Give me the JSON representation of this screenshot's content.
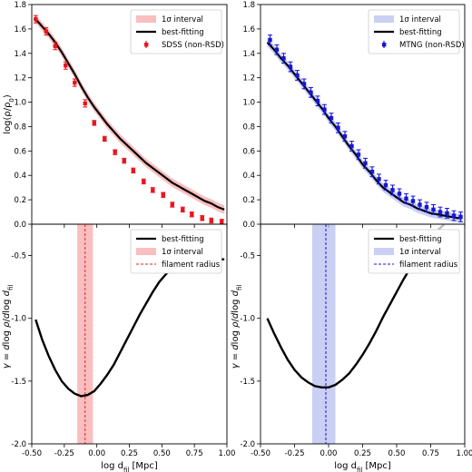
{
  "chart_data": [
    {
      "id": "top-left",
      "type": "line",
      "ylabel": "log(ρ/ρ₀)",
      "xlim": [
        -0.5,
        1.0
      ],
      "ylim": [
        0.0,
        1.8
      ],
      "xticks": [
        -0.5,
        -0.25,
        0.0,
        0.25,
        0.5,
        0.75,
        1.0
      ],
      "yticks": [
        0.0,
        0.2,
        0.4,
        0.6,
        0.8,
        1.0,
        1.2,
        1.4,
        1.6,
        1.8
      ],
      "ytick_labels": [
        "0.0",
        "0.2",
        "0.4",
        "0.6",
        "0.8",
        "1.0",
        "1.2",
        "1.4",
        "1.6",
        "1.8"
      ],
      "legend_position": "top-right",
      "colors": {
        "band": "#f8a8a8",
        "points": "#e8141e",
        "fit": "#000000"
      },
      "legend": [
        "1σ interval",
        "best-fitting",
        "SDSS (non-RSD)"
      ],
      "series": [
        {
          "name": "best-fitting",
          "x": [
            -0.47,
            -0.42,
            -0.37,
            -0.32,
            -0.27,
            -0.22,
            -0.17,
            -0.12,
            -0.07,
            -0.02,
            0.03,
            0.08,
            0.13,
            0.18,
            0.23,
            0.28,
            0.33,
            0.38,
            0.43,
            0.48,
            0.53,
            0.58,
            0.63,
            0.68,
            0.73,
            0.78,
            0.83,
            0.88,
            0.93,
            0.98
          ],
          "y": [
            1.68,
            1.62,
            1.56,
            1.49,
            1.41,
            1.32,
            1.23,
            1.13,
            1.04,
            0.96,
            0.89,
            0.82,
            0.76,
            0.7,
            0.65,
            0.6,
            0.55,
            0.5,
            0.46,
            0.42,
            0.38,
            0.34,
            0.31,
            0.28,
            0.25,
            0.22,
            0.19,
            0.17,
            0.14,
            0.12
          ]
        },
        {
          "name": "SDSS (non-RSD)",
          "x": [
            -0.47,
            -0.39,
            -0.32,
            -0.24,
            -0.17,
            -0.09,
            -0.02,
            0.06,
            0.14,
            0.21,
            0.28,
            0.36,
            0.43,
            0.51,
            0.58,
            0.66,
            0.73,
            0.81,
            0.88,
            0.96
          ],
          "y": [
            1.68,
            1.58,
            1.46,
            1.3,
            1.16,
            0.99,
            0.83,
            0.7,
            0.59,
            0.52,
            0.44,
            0.35,
            0.28,
            0.24,
            0.16,
            0.12,
            0.08,
            0.05,
            0.03,
            0.02
          ],
          "yerr": [
            0.03,
            0.03,
            0.03,
            0.03,
            0.03,
            0.03,
            0.02,
            0.02,
            0.02,
            0.02,
            0.02,
            0.02,
            0.02,
            0.02,
            0.02,
            0.02,
            0.02,
            0.02,
            0.02,
            0.02
          ]
        }
      ]
    },
    {
      "id": "top-right",
      "type": "line",
      "xlim": [
        -0.5,
        1.0
      ],
      "ylim": [
        0.0,
        1.8
      ],
      "xticks": [
        -0.5,
        -0.25,
        0.0,
        0.25,
        0.5,
        0.75,
        1.0
      ],
      "yticks": [
        0.0,
        0.2,
        0.4,
        0.6,
        0.8,
        1.0,
        1.2,
        1.4,
        1.6,
        1.8
      ],
      "ytick_labels": [
        "0.0",
        "0.2",
        "0.4",
        "0.6",
        "0.8",
        "1.0",
        "1.2",
        "1.4",
        "1.6",
        "1.8"
      ],
      "legend_position": "top-right",
      "colors": {
        "band": "#b8bff0",
        "points": "#1616d8",
        "fit": "#000000"
      },
      "legend": [
        "1σ interval",
        "best-fitting",
        "MTNG (non-RSD)"
      ],
      "series": [
        {
          "name": "best-fitting",
          "x": [
            -0.45,
            -0.4,
            -0.35,
            -0.3,
            -0.25,
            -0.2,
            -0.15,
            -0.1,
            -0.05,
            0.0,
            0.05,
            0.1,
            0.15,
            0.2,
            0.25,
            0.3,
            0.35,
            0.4,
            0.45,
            0.5,
            0.55,
            0.6,
            0.65,
            0.7,
            0.75,
            0.8,
            0.85,
            0.9,
            0.95,
            0.98
          ],
          "y": [
            1.49,
            1.43,
            1.36,
            1.3,
            1.23,
            1.16,
            1.09,
            1.02,
            0.95,
            0.87,
            0.8,
            0.72,
            0.64,
            0.57,
            0.49,
            0.43,
            0.36,
            0.3,
            0.26,
            0.22,
            0.18,
            0.16,
            0.13,
            0.11,
            0.09,
            0.08,
            0.07,
            0.06,
            0.05,
            0.05
          ]
        },
        {
          "name": "MTNG (non-RSD)",
          "x": [
            -0.43,
            -0.38,
            -0.33,
            -0.28,
            -0.23,
            -0.18,
            -0.13,
            -0.08,
            -0.03,
            0.02,
            0.07,
            0.12,
            0.17,
            0.22,
            0.27,
            0.32,
            0.37,
            0.42,
            0.47,
            0.52,
            0.57,
            0.62,
            0.67,
            0.72,
            0.77,
            0.82,
            0.87,
            0.92,
            0.97
          ],
          "y": [
            1.51,
            1.43,
            1.36,
            1.29,
            1.22,
            1.15,
            1.08,
            1.01,
            0.94,
            0.87,
            0.79,
            0.72,
            0.64,
            0.57,
            0.5,
            0.43,
            0.37,
            0.32,
            0.28,
            0.25,
            0.21,
            0.19,
            0.16,
            0.14,
            0.12,
            0.1,
            0.09,
            0.07,
            0.06
          ],
          "yerr": [
            0.04,
            0.04,
            0.04,
            0.04,
            0.04,
            0.04,
            0.04,
            0.04,
            0.04,
            0.04,
            0.04,
            0.04,
            0.04,
            0.04,
            0.04,
            0.04,
            0.04,
            0.04,
            0.04,
            0.04,
            0.04,
            0.04,
            0.04,
            0.04,
            0.04,
            0.04,
            0.04,
            0.04,
            0.04
          ]
        }
      ]
    },
    {
      "id": "bottom-left",
      "type": "line",
      "xlabel": "log d_fil [Mpc]",
      "ylabel": "γ = dlog ρ/dlog d_fil",
      "xlim": [
        -0.5,
        1.0
      ],
      "ylim": [
        -2.0,
        -0.25
      ],
      "xticks": [
        -0.5,
        -0.25,
        0.0,
        0.25,
        0.5,
        0.75,
        1.0
      ],
      "xtick_labels": [
        "-0.50",
        "-0.25",
        "0.00",
        "0.25",
        "0.50",
        "0.75",
        "1.00"
      ],
      "yticks": [
        -2.0,
        -1.5,
        -1.0,
        -0.5
      ],
      "ytick_labels": [
        "-2.0",
        "-1.5",
        "-1.0",
        "-0.5"
      ],
      "legend_position": "top-right",
      "colors": {
        "band": "#f8a8a8",
        "radius": "#d62728",
        "fit": "#000000"
      },
      "legend": [
        "best-fitting",
        "1σ interval",
        "filament radius"
      ],
      "filament_radius": -0.09,
      "radius_interval": [
        -0.15,
        -0.03
      ],
      "series": [
        {
          "name": "best-fitting",
          "x": [
            -0.47,
            -0.42,
            -0.37,
            -0.32,
            -0.27,
            -0.22,
            -0.17,
            -0.12,
            -0.07,
            -0.02,
            0.03,
            0.08,
            0.13,
            0.18,
            0.23,
            0.28,
            0.33,
            0.38,
            0.43,
            0.48,
            0.53,
            0.58,
            0.63,
            0.68,
            0.73,
            0.78,
            0.83,
            0.88,
            0.93,
            0.98
          ],
          "y": [
            -1.01,
            -1.17,
            -1.3,
            -1.41,
            -1.5,
            -1.56,
            -1.6,
            -1.62,
            -1.61,
            -1.58,
            -1.52,
            -1.45,
            -1.37,
            -1.27,
            -1.17,
            -1.07,
            -0.97,
            -0.88,
            -0.79,
            -0.71,
            -0.65,
            -0.6,
            -0.57,
            -0.55,
            -0.54,
            -0.54,
            -0.54,
            -0.54,
            -0.53,
            -0.53
          ]
        }
      ]
    },
    {
      "id": "bottom-right",
      "type": "line",
      "xlabel": "log d_fil [Mpc]",
      "ylabel": "γ = dlog ρ/dlog d_fil",
      "xlim": [
        -0.5,
        1.0
      ],
      "ylim": [
        -2.0,
        -0.25
      ],
      "xticks": [
        -0.5,
        -0.25,
        0.0,
        0.25,
        0.5,
        0.75,
        1.0
      ],
      "xtick_labels": [
        "-0.50",
        "-0.25",
        "0.00",
        "0.25",
        "0.50",
        "0.75",
        "1.00"
      ],
      "yticks": [
        -2.0,
        -1.5,
        -1.0,
        -0.5
      ],
      "ytick_labels": [
        "-2.0",
        "-1.5",
        "-1.0",
        "-0.5"
      ],
      "legend_position": "top-right",
      "colors": {
        "band": "#b8bff0",
        "radius": "#1616d8",
        "fit": "#000000",
        "fit_tail": "#bbbbbb"
      },
      "legend": [
        "best-fitting",
        "1σ interval",
        "filament radius"
      ],
      "filament_radius": -0.02,
      "radius_interval": [
        -0.12,
        0.05
      ],
      "series": [
        {
          "name": "best-fitting",
          "x": [
            -0.45,
            -0.4,
            -0.35,
            -0.3,
            -0.25,
            -0.2,
            -0.15,
            -0.1,
            -0.05,
            0.0,
            0.05,
            0.1,
            0.15,
            0.2,
            0.25,
            0.3,
            0.35,
            0.4,
            0.45,
            0.5,
            0.55,
            0.6,
            0.65,
            0.7,
            0.75,
            0.8,
            0.85,
            0.9,
            0.95,
            0.98
          ],
          "y": [
            -1.0,
            -1.12,
            -1.23,
            -1.33,
            -1.41,
            -1.47,
            -1.51,
            -1.54,
            -1.55,
            -1.55,
            -1.53,
            -1.49,
            -1.44,
            -1.37,
            -1.29,
            -1.2,
            -1.1,
            -0.99,
            -0.89,
            -0.79,
            -0.69,
            -0.6,
            -0.51,
            -0.43,
            -0.36,
            -0.3,
            -0.25,
            -0.22,
            -0.2,
            -0.19
          ]
        }
      ]
    }
  ]
}
